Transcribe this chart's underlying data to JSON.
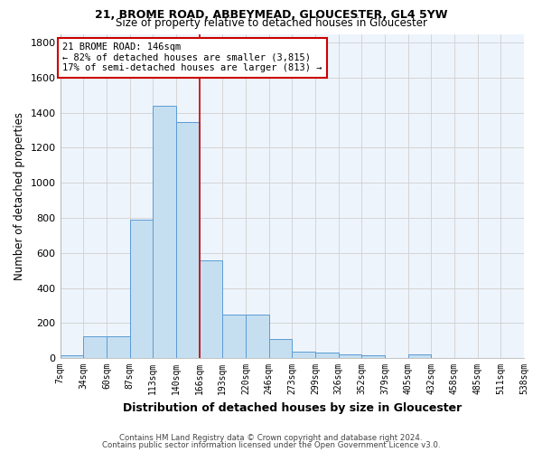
{
  "title1": "21, BROME ROAD, ABBEYMEAD, GLOUCESTER, GL4 5YW",
  "title2": "Size of property relative to detached houses in Gloucester",
  "xlabel": "Distribution of detached houses by size in Gloucester",
  "ylabel": "Number of detached properties",
  "bin_edges": [
    7,
    34,
    60,
    87,
    113,
    140,
    166,
    193,
    220,
    246,
    273,
    299,
    326,
    352,
    379,
    405,
    432,
    458,
    485,
    511,
    538
  ],
  "bin_labels": [
    "7sqm",
    "34sqm",
    "60sqm",
    "87sqm",
    "113sqm",
    "140sqm",
    "166sqm",
    "193sqm",
    "220sqm",
    "246sqm",
    "273sqm",
    "299sqm",
    "326sqm",
    "352sqm",
    "379sqm",
    "405sqm",
    "432sqm",
    "458sqm",
    "485sqm",
    "511sqm",
    "538sqm"
  ],
  "bar_heights": [
    15,
    125,
    125,
    790,
    1440,
    1345,
    555,
    250,
    250,
    110,
    35,
    30,
    20,
    15,
    0,
    20,
    0,
    0,
    0,
    0
  ],
  "bar_color": "#c5dff0",
  "bar_edge_color": "#5b9bd5",
  "grid_color": "#d0d0d0",
  "vline_index": 6,
  "vline_color": "#cc0000",
  "annotation_text": "21 BROME ROAD: 146sqm\n← 82% of detached houses are smaller (3,815)\n17% of semi-detached houses are larger (813) →",
  "annotation_box_color": "#cc0000",
  "footer1": "Contains HM Land Registry data © Crown copyright and database right 2024.",
  "footer2": "Contains public sector information licensed under the Open Government Licence v3.0.",
  "ylim": [
    0,
    1850
  ],
  "yticks": [
    0,
    200,
    400,
    600,
    800,
    1000,
    1200,
    1400,
    1600,
    1800
  ],
  "background_color": "#ffffff",
  "plot_bg_color": "#eef4fb",
  "fig_width": 6.0,
  "fig_height": 5.0
}
